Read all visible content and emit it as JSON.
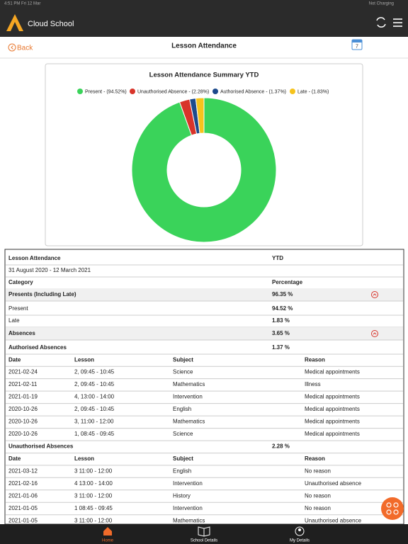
{
  "status_bar": {
    "time": "4:51 PM  Fri 12 Mar",
    "battery": "Not Charging"
  },
  "app_header": {
    "title": "Cloud School"
  },
  "nav": {
    "back": "Back",
    "title": "Lesson Attendance",
    "calendar_day": "7"
  },
  "chart_data": {
    "type": "donut",
    "title": "Lesson Attendance Summary YTD",
    "categories": [
      "Present - (94.52%)",
      "Unauthorised Absence - (2.28%)",
      "Authorised Absence - (1.37%)",
      "Late - (1.83%)"
    ],
    "values": [
      94.52,
      2.28,
      1.37,
      1.83
    ],
    "colors": [
      "#3ad35a",
      "#d8342a",
      "#1d4a8c",
      "#f6c31c"
    ]
  },
  "summary": {
    "title": "Lesson Attendance",
    "period_label": "YTD",
    "period": "31 August 2020 - 12 March 2021",
    "category_header": "Category",
    "percentage_header": "Percentage",
    "presents": {
      "label": "Presents (Including Late)",
      "value": "96.35 %"
    },
    "present": {
      "label": "Present",
      "value": "94.52 %"
    },
    "late": {
      "label": "Late",
      "value": "1.83 %"
    },
    "absences": {
      "label": "Absences",
      "value": "3.65 %"
    }
  },
  "authorised": {
    "label": "Authorised Absences",
    "value": "1.37 %",
    "columns": [
      "Date",
      "Lesson",
      "Subject",
      "Reason"
    ],
    "rows": [
      [
        "2021-02-24",
        "2, 09:45 - 10:45",
        "Science",
        "Medical appointments"
      ],
      [
        "2021-02-11",
        "2, 09:45 - 10:45",
        "Mathematics",
        "Illness"
      ],
      [
        "2021-01-19",
        "4, 13:00 - 14:00",
        "Intervention",
        "Medical appointments"
      ],
      [
        "2020-10-26",
        "2, 09:45 - 10:45",
        "English",
        "Medical appointments"
      ],
      [
        "2020-10-26",
        "3, 11:00 - 12:00",
        "Mathematics",
        "Medical appointments"
      ],
      [
        "2020-10-26",
        "1, 08:45 - 09:45",
        "Science",
        "Medical appointments"
      ]
    ]
  },
  "unauthorised": {
    "label": "Unauthorised Absences",
    "value": "2.28 %",
    "columns": [
      "Date",
      "Lesson",
      "Subject",
      "Reason"
    ],
    "rows": [
      [
        "2021-03-12",
        "3 11:00 - 12:00",
        "English",
        "No reason"
      ],
      [
        "2021-02-16",
        "4 13:00 - 14:00",
        "Intervention",
        "Unauthorised absence"
      ],
      [
        "2021-01-06",
        "3 11:00 - 12:00",
        "History",
        "No reason"
      ],
      [
        "2021-01-05",
        "1 08:45 - 09:45",
        "Intervention",
        "No reason"
      ],
      [
        "2021-01-05",
        "3 11:00 - 12:00",
        "Mathematics",
        "Unauthorised absence"
      ]
    ]
  },
  "tabs": [
    "Home",
    "School Details",
    "My Details"
  ]
}
